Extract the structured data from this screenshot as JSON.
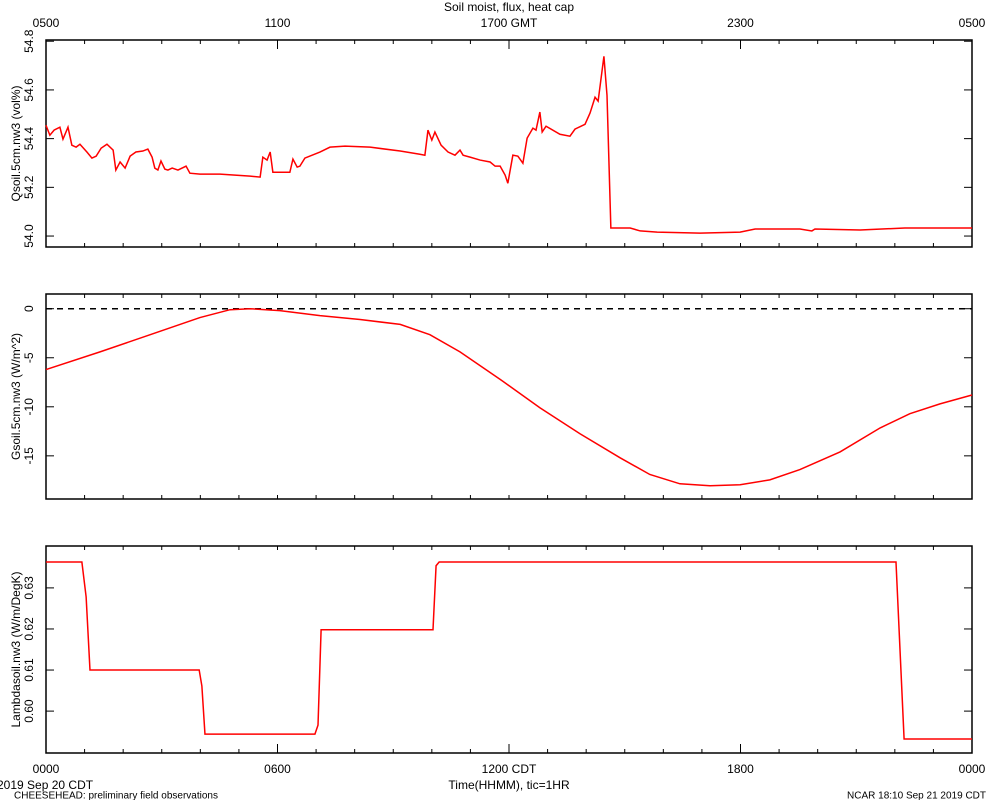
{
  "header": {
    "title": "Soil moist, flux, heat cap",
    "xlabel": "Time(HHMM), tic=1HR",
    "date": "2019 Sep 20 CDT"
  },
  "footer": {
    "left": "CHEESEHEAD: preliminary field observations",
    "right": "NCAR 18:10 Sep 21 2019 CDT"
  },
  "chart_data": [
    {
      "type": "line",
      "ylabel": "Qsoil.5cm.nw3 (vol%)",
      "xlim": [
        0,
        24
      ],
      "ylim": [
        53.955,
        54.805
      ],
      "x2ticks": [
        {
          "value": 0,
          "label": "0500"
        },
        {
          "value": 6,
          "label": "1100"
        },
        {
          "value": 12,
          "label": "1700 GMT"
        },
        {
          "value": 18,
          "label": "2300"
        },
        {
          "value": 24,
          "label": "0500"
        }
      ],
      "yticks": [
        {
          "value": 54,
          "label": "54.0"
        },
        54.2,
        54.4,
        54.6,
        54.8
      ],
      "x": [
        0,
        0.1,
        0.21,
        0.36,
        0.44,
        0.57,
        0.67,
        0.78,
        0.88,
        1.06,
        1.19,
        1.3,
        1.43,
        1.58,
        1.74,
        1.81,
        1.92,
        2.05,
        2.18,
        2.33,
        2.51,
        2.64,
        2.75,
        2.82,
        2.9,
        2.98,
        3.08,
        3.16,
        3.27,
        3.42,
        3.63,
        3.73,
        3.99,
        4.51,
        5.29,
        5.55,
        5.62,
        5.73,
        5.81,
        5.88,
        6.32,
        6.4,
        6.51,
        6.58,
        6.71,
        7.1,
        7.36,
        7.75,
        8.4,
        9.18,
        9.69,
        9.82,
        9.9,
        10.0,
        10.08,
        10.24,
        10.42,
        10.6,
        10.73,
        10.81,
        10.99,
        11.25,
        11.51,
        11.64,
        11.77,
        11.9,
        11.97,
        12.1,
        12.23,
        12.36,
        12.47,
        12.62,
        12.7,
        12.8,
        12.86,
        12.96,
        13.32,
        13.58,
        13.71,
        13.97,
        14.1,
        14.23,
        14.31,
        14.46,
        14.54,
        14.64,
        15.14,
        15.4,
        15.84,
        16.95,
        17.99,
        18.38,
        19.54,
        19.85,
        19.93,
        21.1,
        22.26,
        24.0
      ],
      "series": [
        {
          "color": "#ff0000",
          "values": [
            54.455,
            54.414,
            54.435,
            54.447,
            54.398,
            54.447,
            54.373,
            54.365,
            54.377,
            54.345,
            54.32,
            54.328,
            54.361,
            54.377,
            54.353,
            54.271,
            54.304,
            54.279,
            54.328,
            54.345,
            54.349,
            54.357,
            54.324,
            54.279,
            54.271,
            54.308,
            54.275,
            54.271,
            54.279,
            54.271,
            54.287,
            54.258,
            54.254,
            54.254,
            54.246,
            54.242,
            54.324,
            54.312,
            54.345,
            54.262,
            54.262,
            54.316,
            54.283,
            54.287,
            54.32,
            54.345,
            54.365,
            54.369,
            54.365,
            54.349,
            54.336,
            54.332,
            54.435,
            54.394,
            54.427,
            54.373,
            54.345,
            54.332,
            54.353,
            54.332,
            54.324,
            54.312,
            54.304,
            54.287,
            54.287,
            54.25,
            54.217,
            54.332,
            54.328,
            54.299,
            54.402,
            54.443,
            54.435,
            54.509,
            54.427,
            54.451,
            54.418,
            54.41,
            54.439,
            54.459,
            54.505,
            54.57,
            54.554,
            54.738,
            54.578,
            54.033,
            54.033,
            54.021,
            54.016,
            54.012,
            54.016,
            54.029,
            54.029,
            54.021,
            54.029,
            54.025,
            54.033,
            54.033
          ]
        }
      ]
    },
    {
      "type": "line",
      "ylabel": "Gsoil.5cm.nw3 (W/m^2)",
      "xlim": [
        0,
        24
      ],
      "ylim": [
        -19.4,
        1.5
      ],
      "ref_line": 0,
      "yticks": [
        -15,
        -10,
        -5,
        0
      ],
      "x": [
        0,
        1.4,
        2.7,
        3.99,
        4.77,
        5.29,
        6.06,
        7.1,
        8.14,
        9.18,
        9.95,
        10.73,
        11.77,
        12.8,
        13.84,
        14.88,
        15.65,
        16.43,
        17.21,
        17.99,
        18.76,
        19.54,
        20.58,
        21.62,
        22.39,
        23.17,
        24
      ],
      "series": [
        {
          "color": "#ff0000",
          "values": [
            -6.2,
            -4.4,
            -2.65,
            -0.9,
            -0.1,
            0,
            -0.2,
            -0.7,
            -1.1,
            -1.6,
            -2.65,
            -4.4,
            -7.2,
            -10.1,
            -12.75,
            -15.2,
            -16.9,
            -17.85,
            -18.05,
            -17.95,
            -17.45,
            -16.4,
            -14.6,
            -12.15,
            -10.7,
            -9.7,
            -8.8
          ]
        }
      ]
    },
    {
      "type": "line",
      "ylabel": "Lambdasoil.nw3 (W/m/DegK)",
      "xlim": [
        0,
        24
      ],
      "ylim": [
        0.5898,
        0.6402
      ],
      "xticks": [
        {
          "value": 0,
          "label": "0000"
        },
        {
          "value": 6,
          "label": "0600"
        },
        {
          "value": 12,
          "label": "1200 CDT"
        },
        {
          "value": 18,
          "label": "1800"
        },
        {
          "value": 24,
          "label": "0000"
        }
      ],
      "yticks": [
        {
          "value": 0.6,
          "label": "0.60"
        },
        0.61,
        0.62,
        0.63
      ],
      "x": [
        0,
        0.93,
        1.04,
        1.14,
        3.97,
        4.04,
        4.12,
        6.97,
        7.05,
        7.13,
        10.03,
        10.11,
        10.19,
        22.03,
        22.24,
        24
      ],
      "series": [
        {
          "color": "#ff0000",
          "values": [
            0.6363,
            0.6363,
            0.6278,
            0.61,
            0.61,
            0.6061,
            0.5944,
            0.5944,
            0.5966,
            0.6198,
            0.6198,
            0.6354,
            0.6363,
            0.6363,
            0.5932,
            0.5932
          ]
        }
      ]
    }
  ]
}
